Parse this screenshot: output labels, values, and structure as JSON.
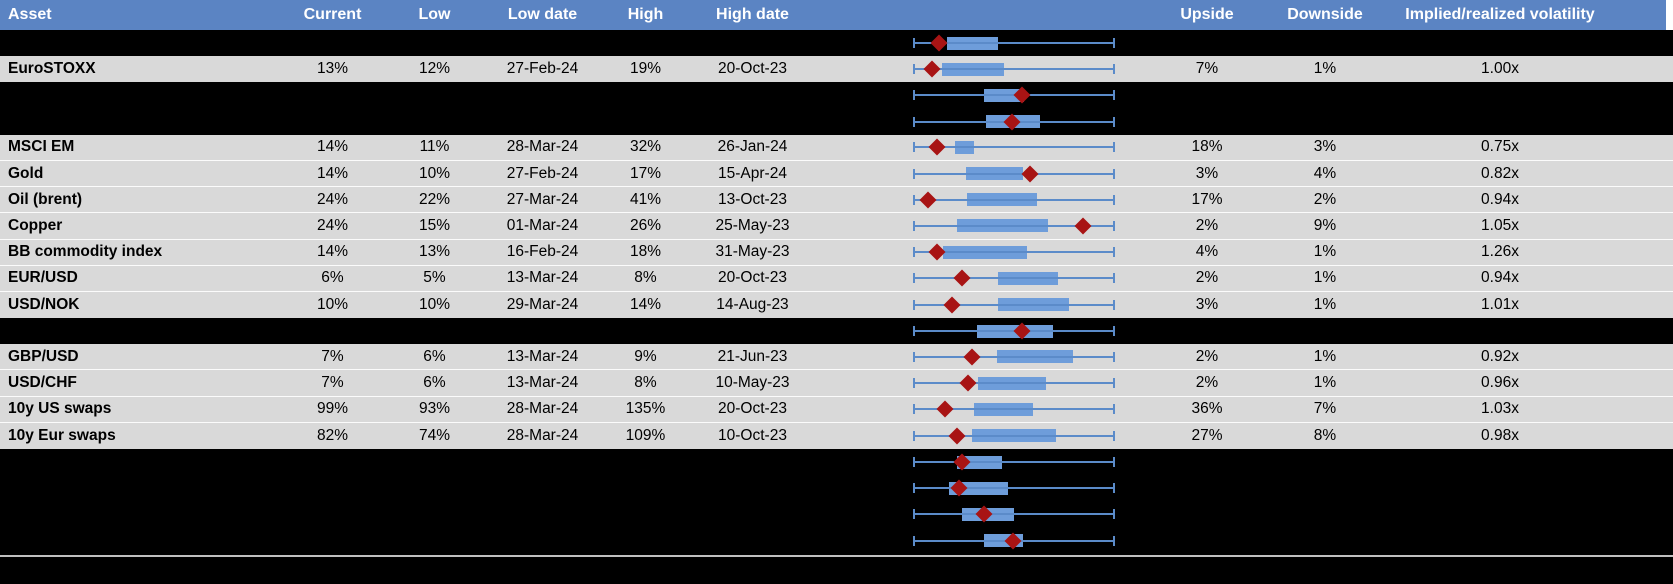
{
  "chart_data": {
    "type": "table",
    "columns": [
      "Asset",
      "Current",
      "Low",
      "Low date",
      "High",
      "High date",
      "Upside",
      "Downside",
      "Implied/realized volatility"
    ],
    "boxplot_track": {
      "marker_shape": "diamond",
      "whisker_span": [
        0,
        1
      ]
    },
    "rows": [
      {
        "redacted": true,
        "asset": "",
        "current": "",
        "low": "",
        "low_date": "",
        "high": "",
        "high_date": "",
        "upside": "",
        "downside": "",
        "implied_realized": "",
        "box": {
          "lo": 0.17,
          "hi": 0.42,
          "dot": 0.13
        }
      },
      {
        "redacted": false,
        "asset": "EuroSTOXX",
        "current": "13%",
        "low": "12%",
        "low_date": "27-Feb-24",
        "high": "19%",
        "high_date": "20-Oct-23",
        "upside": "7%",
        "downside": "1%",
        "implied_realized": "1.00x",
        "box": {
          "lo": 0.145,
          "hi": 0.45,
          "dot": 0.095
        }
      },
      {
        "redacted": true,
        "asset": "",
        "current": "",
        "low": "",
        "low_date": "",
        "high": "",
        "high_date": "",
        "upside": "",
        "downside": "",
        "implied_realized": "",
        "box": {
          "lo": 0.35,
          "hi": 0.55,
          "dot": 0.54
        }
      },
      {
        "redacted": true,
        "asset": "",
        "current": "",
        "low": "",
        "low_date": "",
        "high": "",
        "high_date": "",
        "upside": "",
        "downside": "",
        "implied_realized": "",
        "box": {
          "lo": 0.36,
          "hi": 0.63,
          "dot": 0.49
        }
      },
      {
        "redacted": false,
        "asset": "MSCI EM",
        "current": "14%",
        "low": "11%",
        "low_date": "28-Mar-24",
        "high": "32%",
        "high_date": "26-Jan-24",
        "upside": "18%",
        "downside": "3%",
        "implied_realized": "0.75x",
        "box": {
          "lo": 0.21,
          "hi": 0.3,
          "dot": 0.12
        }
      },
      {
        "redacted": false,
        "asset": "Gold",
        "current": "14%",
        "low": "10%",
        "low_date": "27-Feb-24",
        "high": "17%",
        "high_date": "15-Apr-24",
        "upside": "3%",
        "downside": "4%",
        "implied_realized": "0.82x",
        "box": {
          "lo": 0.26,
          "hi": 0.545,
          "dot": 0.58
        }
      },
      {
        "redacted": false,
        "asset": "Oil (brent)",
        "current": "24%",
        "low": "22%",
        "low_date": "27-Mar-24",
        "high": "41%",
        "high_date": "13-Oct-23",
        "upside": "17%",
        "downside": "2%",
        "implied_realized": "0.94x",
        "box": {
          "lo": 0.265,
          "hi": 0.615,
          "dot": 0.075
        }
      },
      {
        "redacted": false,
        "asset": "Copper",
        "current": "24%",
        "low": "15%",
        "low_date": "01-Mar-24",
        "high": "26%",
        "high_date": "25-May-23",
        "upside": "2%",
        "downside": "9%",
        "implied_realized": "1.05x",
        "box": {
          "lo": 0.22,
          "hi": 0.67,
          "dot": 0.84
        }
      },
      {
        "redacted": false,
        "asset": "BB commodity index",
        "current": "14%",
        "low": "13%",
        "low_date": "16-Feb-24",
        "high": "18%",
        "high_date": "31-May-23",
        "upside": "4%",
        "downside": "1%",
        "implied_realized": "1.26x",
        "box": {
          "lo": 0.15,
          "hi": 0.565,
          "dot": 0.12
        }
      },
      {
        "redacted": false,
        "asset": "EUR/USD",
        "current": "6%",
        "low": "5%",
        "low_date": "13-Mar-24",
        "high": "8%",
        "high_date": "20-Oct-23",
        "upside": "2%",
        "downside": "1%",
        "implied_realized": "0.94x",
        "box": {
          "lo": 0.42,
          "hi": 0.72,
          "dot": 0.245
        }
      },
      {
        "redacted": false,
        "asset": "USD/NOK",
        "current": "10%",
        "low": "10%",
        "low_date": "29-Mar-24",
        "high": "14%",
        "high_date": "14-Aug-23",
        "upside": "3%",
        "downside": "1%",
        "implied_realized": "1.01x",
        "box": {
          "lo": 0.42,
          "hi": 0.77,
          "dot": 0.195
        }
      },
      {
        "redacted": true,
        "asset": "",
        "current": "",
        "low": "",
        "low_date": "",
        "high": "",
        "high_date": "",
        "upside": "",
        "downside": "",
        "implied_realized": "",
        "box": {
          "lo": 0.315,
          "hi": 0.695,
          "dot": 0.54
        }
      },
      {
        "redacted": false,
        "asset": "GBP/USD",
        "current": "7%",
        "low": "6%",
        "low_date": "13-Mar-24",
        "high": "9%",
        "high_date": "21-Jun-23",
        "upside": "2%",
        "downside": "1%",
        "implied_realized": "0.92x",
        "box": {
          "lo": 0.415,
          "hi": 0.79,
          "dot": 0.29
        }
      },
      {
        "redacted": false,
        "asset": "USD/CHF",
        "current": "7%",
        "low": "6%",
        "low_date": "13-Mar-24",
        "high": "8%",
        "high_date": "10-May-23",
        "upside": "2%",
        "downside": "1%",
        "implied_realized": "0.96x",
        "box": {
          "lo": 0.32,
          "hi": 0.66,
          "dot": 0.27
        }
      },
      {
        "redacted": false,
        "asset": "10y US swaps",
        "current": "99%",
        "low": "93%",
        "low_date": "28-Mar-24",
        "high": "135%",
        "high_date": "20-Oct-23",
        "upside": "36%",
        "downside": "7%",
        "implied_realized": "1.03x",
        "box": {
          "lo": 0.3,
          "hi": 0.595,
          "dot": 0.16
        }
      },
      {
        "redacted": false,
        "asset": "10y Eur swaps",
        "current": "82%",
        "low": "74%",
        "low_date": "28-Mar-24",
        "high": "109%",
        "high_date": "10-Oct-23",
        "upside": "27%",
        "downside": "8%",
        "implied_realized": "0.98x",
        "box": {
          "lo": 0.29,
          "hi": 0.71,
          "dot": 0.22
        }
      },
      {
        "redacted": true,
        "asset": "",
        "current": "",
        "low": "",
        "low_date": "",
        "high": "",
        "high_date": "",
        "upside": "",
        "downside": "",
        "implied_realized": "",
        "box": {
          "lo": 0.22,
          "hi": 0.44,
          "dot": 0.245
        }
      },
      {
        "redacted": true,
        "asset": "",
        "current": "",
        "low": "",
        "low_date": "",
        "high": "",
        "high_date": "",
        "upside": "",
        "downside": "",
        "implied_realized": "",
        "box": {
          "lo": 0.18,
          "hi": 0.47,
          "dot": 0.23
        }
      },
      {
        "redacted": true,
        "asset": "",
        "current": "",
        "low": "",
        "low_date": "",
        "high": "",
        "high_date": "",
        "upside": "",
        "downside": "",
        "implied_realized": "",
        "box": {
          "lo": 0.245,
          "hi": 0.5,
          "dot": 0.35
        }
      },
      {
        "redacted": true,
        "asset": "",
        "current": "",
        "low": "",
        "low_date": "",
        "high": "",
        "high_date": "",
        "upside": "",
        "downside": "",
        "implied_realized": "",
        "box": {
          "lo": 0.35,
          "hi": 0.545,
          "dot": 0.495
        }
      }
    ]
  },
  "colors": {
    "header_bg": "#5B84C3",
    "header_text": "#FFFFFF",
    "row_bg": "#D9D9D9",
    "redacted_bg": "#000000",
    "text": "#000000",
    "whisker": "#5B8BC9",
    "box_fill": "#6E9DDA",
    "diamond": "#A81414",
    "bottom_line": "#BFBFBF"
  }
}
